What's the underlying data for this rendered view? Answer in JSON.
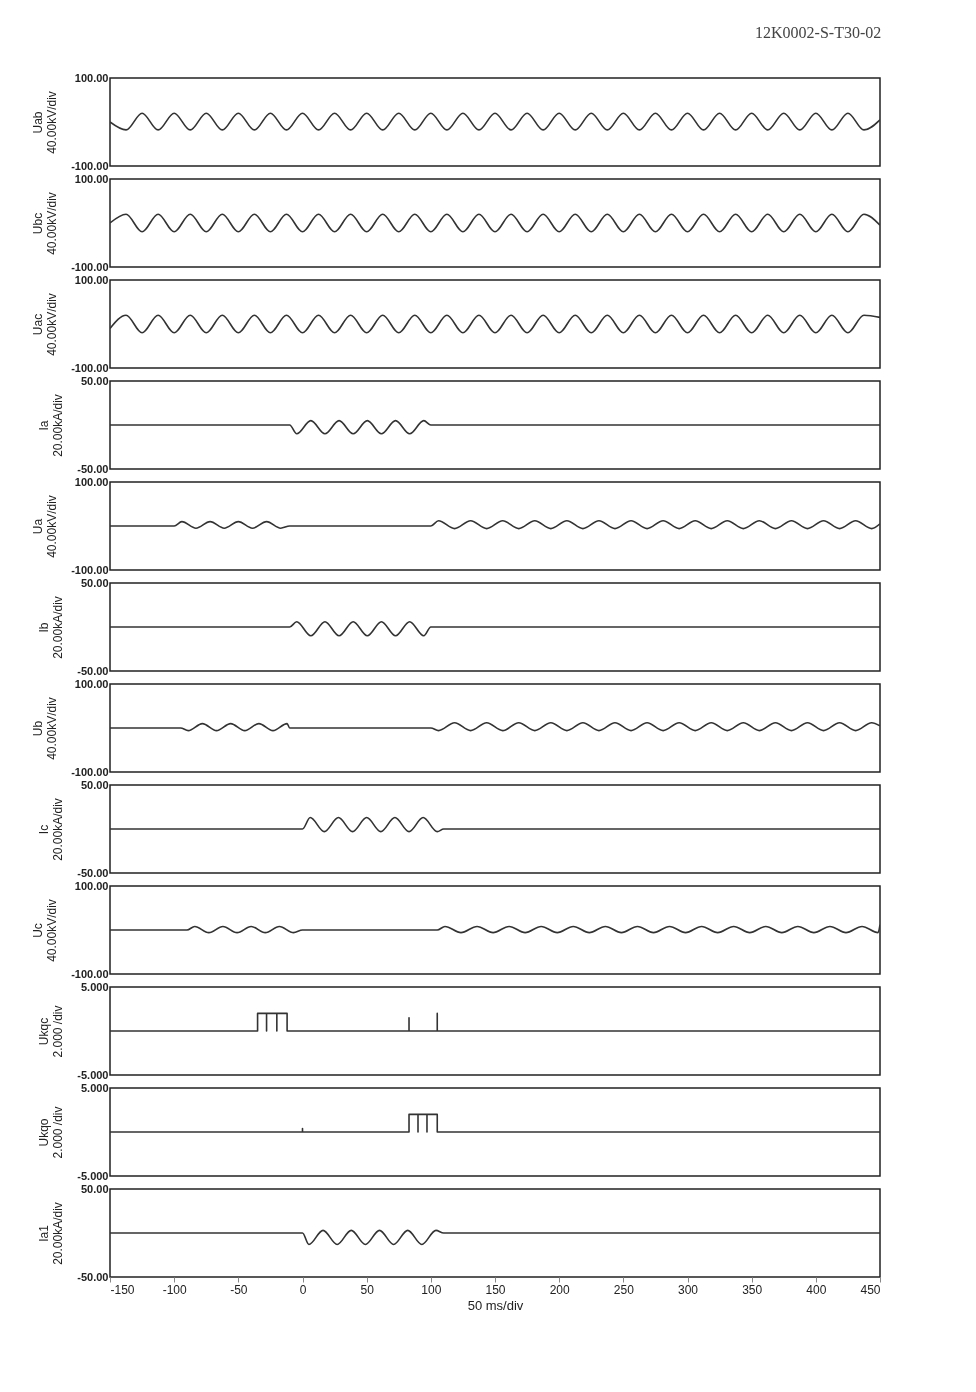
{
  "chart_data": [
    {
      "type": "line",
      "ylabel": "Uab\n40.00kV/div",
      "annotations": [
        "12K0002-S-T30-02"
      ],
      "xlim": [
        -150,
        450
      ],
      "ylim": [
        -100,
        100
      ],
      "yticks": [
        {
          "value": 100,
          "label": "100.00"
        },
        {
          "value": -100,
          "label": "-100.00"
        }
      ],
      "tick_labels": "y",
      "x": [
        -150,
        -137.5,
        -125,
        -112.5,
        -100,
        -87.5,
        -75,
        -62.5,
        -50,
        -37.5,
        -25,
        -12.5,
        0,
        12.5,
        25,
        37.5,
        50,
        62.5,
        75,
        87.5,
        100,
        112.5,
        125,
        137.5,
        150,
        162.5,
        175,
        187.5,
        200,
        212.5,
        225,
        237.5,
        250,
        262.5,
        275,
        287.5,
        300,
        312.5,
        325,
        337.5,
        350,
        362.5,
        375,
        387.5,
        400,
        412.5,
        425,
        437.5,
        450
      ],
      "series": [
        {
          "color": "#333333",
          "values": [
            0,
            -18,
            20,
            -18,
            20,
            -18,
            20,
            -18,
            20,
            -18,
            20,
            -18,
            20,
            -18,
            20,
            -18,
            20,
            -18,
            20,
            -18,
            20,
            -18,
            20,
            -18,
            20,
            -18,
            20,
            -18,
            20,
            -18,
            20,
            -18,
            20,
            -18,
            20,
            -18,
            20,
            -18,
            20,
            -18,
            20,
            -18,
            20,
            -18,
            20,
            -18,
            20,
            -18,
            5
          ]
        }
      ]
    },
    {
      "type": "line",
      "ylabel": "Ubc\n40.00kV/div",
      "xlim": [
        -150,
        450
      ],
      "ylim": [
        -100,
        100
      ],
      "yticks": [
        {
          "value": 100,
          "label": "100.00"
        },
        {
          "value": -100,
          "label": "-100.00"
        }
      ],
      "tick_labels": "y",
      "x": [
        -150,
        -137.5,
        -125,
        -112.5,
        -100,
        -87.5,
        -75,
        -62.5,
        -50,
        -37.5,
        -25,
        -12.5,
        0,
        12.5,
        25,
        37.5,
        50,
        62.5,
        75,
        87.5,
        100,
        112.5,
        125,
        137.5,
        150,
        162.5,
        175,
        187.5,
        200,
        212.5,
        225,
        237.5,
        250,
        262.5,
        275,
        287.5,
        300,
        312.5,
        325,
        337.5,
        350,
        362.5,
        375,
        387.5,
        400,
        412.5,
        425,
        437.5,
        450
      ],
      "series": [
        {
          "color": "#333333",
          "values": [
            0,
            20,
            -20,
            20,
            -20,
            20,
            -20,
            20,
            -20,
            20,
            -20,
            20,
            -20,
            20,
            -20,
            20,
            -20,
            20,
            -20,
            20,
            -20,
            20,
            -20,
            20,
            -20,
            20,
            -20,
            20,
            -20,
            20,
            -20,
            20,
            -20,
            20,
            -20,
            20,
            -20,
            20,
            -20,
            20,
            -20,
            20,
            -20,
            20,
            -20,
            20,
            -20,
            20,
            -5
          ]
        }
      ]
    },
    {
      "type": "line",
      "ylabel": "Uac\n40.00kV/div",
      "xlim": [
        -150,
        450
      ],
      "ylim": [
        -100,
        100
      ],
      "yticks": [
        {
          "value": 100,
          "label": "100.00"
        },
        {
          "value": -100,
          "label": "-100.00"
        }
      ],
      "tick_labels": "y",
      "x": [
        -150,
        -137.5,
        -125,
        -112.5,
        -100,
        -87.5,
        -75,
        -62.5,
        -50,
        -37.5,
        -25,
        -12.5,
        0,
        12.5,
        25,
        37.5,
        50,
        62.5,
        75,
        87.5,
        100,
        112.5,
        125,
        137.5,
        150,
        162.5,
        175,
        187.5,
        200,
        212.5,
        225,
        237.5,
        250,
        262.5,
        275,
        287.5,
        300,
        312.5,
        325,
        337.5,
        350,
        362.5,
        375,
        387.5,
        400,
        412.5,
        425,
        437.5,
        450
      ],
      "series": [
        {
          "color": "#333333",
          "values": [
            -10,
            20,
            -20,
            20,
            -20,
            20,
            -20,
            20,
            -20,
            20,
            -20,
            20,
            -20,
            20,
            -20,
            20,
            -20,
            20,
            -20,
            20,
            -20,
            20,
            -20,
            20,
            -20,
            20,
            -20,
            20,
            -20,
            20,
            -20,
            20,
            -20,
            20,
            -20,
            20,
            -20,
            20,
            -20,
            20,
            -20,
            20,
            -20,
            20,
            -20,
            20,
            -20,
            20,
            15
          ]
        }
      ]
    },
    {
      "type": "line",
      "ylabel": "Ia\n20.00kA/div",
      "xlim": [
        -150,
        450
      ],
      "ylim": [
        -50,
        50
      ],
      "yticks": [
        {
          "value": 50,
          "label": "50.00"
        },
        {
          "value": -50,
          "label": "-50.00"
        }
      ],
      "tick_labels": "y",
      "x": [
        -150,
        -10,
        -4.5,
        6.5,
        17.5,
        28.5,
        39.5,
        50.5,
        61.5,
        72.5,
        83.5,
        94.5,
        100,
        450
      ],
      "series": [
        {
          "color": "#333333",
          "values": [
            0,
            0,
            -10,
            5,
            -10,
            5,
            -10,
            5,
            -10,
            5,
            -10,
            5,
            0,
            0
          ]
        }
      ]
    },
    {
      "type": "line",
      "ylabel": "Ua\n40.00kV/div",
      "xlim": [
        -150,
        450
      ],
      "ylim": [
        -100,
        100
      ],
      "yticks": [
        {
          "value": 100,
          "label": "100.00"
        },
        {
          "value": -100,
          "label": "-100.00"
        }
      ],
      "tick_labels": "y",
      "x": [
        -150,
        -100,
        -94,
        -83,
        -72,
        -61,
        -50,
        -39,
        -28,
        -17,
        -10,
        100,
        106,
        118.5,
        131,
        143.5,
        156,
        168.5,
        181,
        193.5,
        206,
        218.5,
        231,
        243.5,
        256,
        268.5,
        281,
        293.5,
        306,
        318.5,
        331,
        343.5,
        356,
        368.5,
        381,
        393.5,
        406,
        418.5,
        431,
        443.5,
        450
      ],
      "series": [
        {
          "color": "#333333",
          "values": [
            0,
            0,
            10,
            -5,
            10,
            -5,
            10,
            -5,
            10,
            -5,
            0,
            0,
            12,
            -6,
            12,
            -6,
            12,
            -6,
            12,
            -6,
            12,
            -6,
            12,
            -6,
            12,
            -6,
            12,
            -6,
            12,
            -6,
            12,
            -6,
            12,
            -6,
            12,
            -6,
            12,
            -6,
            12,
            -6,
            5
          ]
        }
      ]
    },
    {
      "type": "line",
      "ylabel": "Ib\n20.00kA/div",
      "xlim": [
        -150,
        450
      ],
      "ylim": [
        -50,
        50
      ],
      "yticks": [
        {
          "value": 50,
          "label": "50.00"
        },
        {
          "value": -50,
          "label": "-50.00"
        }
      ],
      "tick_labels": "y",
      "x": [
        -150,
        -10,
        -4.5,
        6.5,
        17.5,
        28.5,
        39.5,
        50.5,
        61.5,
        72.5,
        83.5,
        94.5,
        100,
        450
      ],
      "series": [
        {
          "color": "#333333",
          "values": [
            0,
            0,
            6,
            -10,
            6,
            -10,
            6,
            -10,
            6,
            -10,
            6,
            -10,
            0,
            0
          ]
        }
      ]
    },
    {
      "type": "line",
      "ylabel": "Ub\n40.00kV/div",
      "xlim": [
        -150,
        450
      ],
      "ylim": [
        -100,
        100
      ],
      "yticks": [
        {
          "value": 100,
          "label": "100.00"
        },
        {
          "value": -100,
          "label": "-100.00"
        }
      ],
      "tick_labels": "y",
      "x": [
        -150,
        -95,
        -89,
        -78,
        -67,
        -56,
        -45,
        -34,
        -23,
        -12,
        -10,
        100,
        106,
        118.5,
        131,
        143.5,
        156,
        168.5,
        181,
        193.5,
        206,
        218.5,
        231,
        243.5,
        256,
        268.5,
        281,
        293.5,
        306,
        318.5,
        331,
        343.5,
        356,
        368.5,
        381,
        393.5,
        406,
        418.5,
        431,
        443.5,
        450
      ],
      "series": [
        {
          "color": "#333333",
          "values": [
            0,
            0,
            -6,
            10,
            -6,
            10,
            -6,
            10,
            -6,
            10,
            0,
            0,
            -6,
            12,
            -6,
            12,
            -6,
            12,
            -6,
            12,
            -6,
            12,
            -6,
            12,
            -6,
            12,
            -6,
            12,
            -6,
            12,
            -6,
            12,
            -6,
            12,
            -6,
            12,
            -6,
            12,
            -6,
            12,
            5
          ]
        }
      ]
    },
    {
      "type": "line",
      "ylabel": "Ic\n20.00kA/div",
      "xlim": [
        -150,
        450
      ],
      "ylim": [
        -50,
        50
      ],
      "yticks": [
        {
          "value": 50,
          "label": "50.00"
        },
        {
          "value": -50,
          "label": "-50.00"
        }
      ],
      "tick_labels": "y",
      "x": [
        -150,
        0,
        6,
        17,
        28,
        39,
        50,
        61,
        72,
        83,
        94,
        105,
        110,
        450
      ],
      "series": [
        {
          "color": "#333333",
          "values": [
            0,
            0,
            13,
            -3,
            13,
            -3,
            13,
            -3,
            13,
            -3,
            13,
            -3,
            0,
            0
          ]
        }
      ]
    },
    {
      "type": "line",
      "ylabel": "Uc\n40.00kV/div",
      "xlim": [
        -150,
        450
      ],
      "ylim": [
        -100,
        100
      ],
      "yticks": [
        {
          "value": 100,
          "label": "100.00"
        },
        {
          "value": -100,
          "label": "-100.00"
        }
      ],
      "tick_labels": "y",
      "x": [
        -150,
        -90,
        -84,
        -73,
        -62,
        -51,
        -40,
        -29,
        -18,
        -7,
        0,
        105,
        111,
        123.5,
        136,
        148.5,
        161,
        173.5,
        186,
        198.5,
        211,
        223.5,
        236,
        248.5,
        261,
        273.5,
        286,
        298.5,
        311,
        323.5,
        336,
        348.5,
        361,
        373.5,
        386,
        398.5,
        411,
        423.5,
        436,
        448.5,
        450
      ],
      "series": [
        {
          "color": "#333333",
          "values": [
            0,
            0,
            8,
            -6,
            8,
            -6,
            8,
            -6,
            8,
            -6,
            0,
            0,
            8,
            -6,
            8,
            -6,
            8,
            -6,
            8,
            -6,
            8,
            -6,
            8,
            -6,
            8,
            -6,
            8,
            -6,
            8,
            -6,
            8,
            -6,
            8,
            -6,
            8,
            -6,
            8,
            -6,
            8,
            -6,
            12
          ]
        }
      ]
    },
    {
      "type": "line",
      "ylabel": "Ukqc\n2.000 /div",
      "xlim": [
        -150,
        450
      ],
      "ylim": [
        -5,
        5
      ],
      "yticks": [
        {
          "value": 5,
          "label": "5.000"
        },
        {
          "value": -5,
          "label": "-5.000"
        }
      ],
      "tick_labels": "y",
      "x": [
        -150,
        -35,
        -35,
        -28,
        -28,
        -28,
        -20,
        -20,
        -20,
        -12,
        -12,
        83,
        83,
        83,
        105,
        105,
        105,
        450
      ],
      "series": [
        {
          "color": "#333333",
          "values": [
            0,
            0,
            2,
            2,
            0,
            2,
            2,
            0,
            2,
            2,
            0,
            0,
            1.5,
            0,
            0,
            2,
            0,
            0
          ]
        }
      ]
    },
    {
      "type": "line",
      "ylabel": "Ukqo\n2.000 /div",
      "xlim": [
        -150,
        450
      ],
      "ylim": [
        -5,
        5
      ],
      "yticks": [
        {
          "value": 5,
          "label": "5.000"
        },
        {
          "value": -5,
          "label": "-5.000"
        }
      ],
      "tick_labels": "y",
      "x": [
        -150,
        0,
        0,
        0,
        83,
        83,
        90,
        90,
        90,
        97,
        97,
        97,
        105,
        105,
        450
      ],
      "series": [
        {
          "color": "#333333",
          "values": [
            0,
            0,
            0.4,
            0,
            0,
            2,
            2,
            0,
            2,
            2,
            0,
            2,
            2,
            0,
            0
          ]
        }
      ]
    },
    {
      "type": "line",
      "ylabel": "Ia1\n20.00kA/div",
      "xlabel": "50 ms/div",
      "xlim": [
        -150,
        450
      ],
      "xticks": [
        -150,
        -100,
        -50,
        0,
        50,
        100,
        150,
        200,
        250,
        300,
        350,
        400,
        450
      ],
      "ylim": [
        -50,
        50
      ],
      "yticks": [
        {
          "value": 50,
          "label": "50.00"
        },
        {
          "value": -50,
          "label": "-50.00"
        }
      ],
      "x": [
        -150,
        0,
        5,
        16,
        27,
        38,
        49,
        60,
        71,
        82,
        93,
        104,
        110,
        450
      ],
      "series": [
        {
          "color": "#333333",
          "values": [
            0,
            0,
            -13,
            3,
            -13,
            3,
            -13,
            3,
            -13,
            3,
            -13,
            3,
            0,
            0
          ]
        }
      ]
    }
  ]
}
